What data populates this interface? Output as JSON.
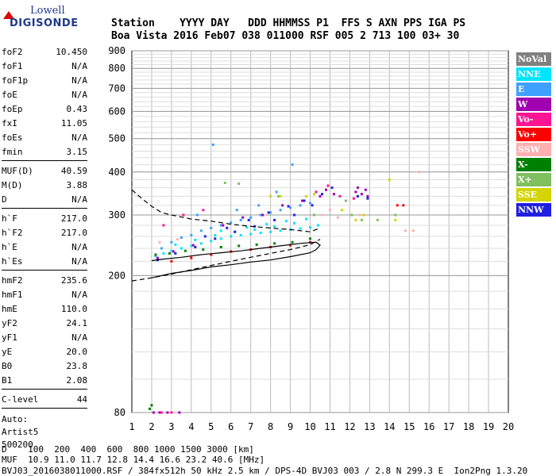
{
  "logo": {
    "top": "Lowell",
    "main": "DIGISONDE"
  },
  "header": {
    "line1": "Station    YYYY DAY   DDD HHMMSS P1  FFS S AXN PPS IGA PS",
    "line2": "Boa Vista 2016 Feb07 038 011000 RSF 005 2 713 100 03+ 30"
  },
  "params": {
    "g1": [
      {
        "label": "foF2",
        "value": "10.450"
      },
      {
        "label": "foF1",
        "value": "N/A"
      },
      {
        "label": "foF1p",
        "value": "N/A"
      },
      {
        "label": "foE",
        "value": "N/A"
      },
      {
        "label": "foEp",
        "value": "0.43"
      },
      {
        "label": "fxI",
        "value": "11.05"
      },
      {
        "label": "foEs",
        "value": "N/A"
      },
      {
        "label": "fmin",
        "value": "3.15"
      }
    ],
    "g2": [
      {
        "label": "MUF(D)",
        "value": "40.59"
      },
      {
        "label": "M(D)",
        "value": "3.88"
      },
      {
        "label": "D",
        "value": "N/A"
      }
    ],
    "g3": [
      {
        "label": "h`F",
        "value": "217.0"
      },
      {
        "label": "h`F2",
        "value": "217.0"
      },
      {
        "label": "h`E",
        "value": "N/A"
      },
      {
        "label": "h`Es",
        "value": "N/A"
      }
    ],
    "g4": [
      {
        "label": "hmF2",
        "value": "235.6"
      },
      {
        "label": "hmF1",
        "value": "N/A"
      },
      {
        "label": "hmE",
        "value": "110.0"
      },
      {
        "label": "yF2",
        "value": "24.1"
      },
      {
        "label": "yF1",
        "value": "N/A"
      },
      {
        "label": "yE",
        "value": "20.0"
      },
      {
        "label": "B0",
        "value": "23.8"
      },
      {
        "label": "B1",
        "value": "2.08"
      }
    ],
    "g5": [
      {
        "label": "C-level",
        "value": "44"
      }
    ],
    "auto": [
      "Auto:",
      "Artist5",
      "500200"
    ]
  },
  "legend": [
    {
      "label": "NoVal",
      "color": "#808080"
    },
    {
      "label": "NNE",
      "color": "#00e5ff"
    },
    {
      "label": "E",
      "color": "#3fa0ff"
    },
    {
      "label": "W",
      "color": "#a000b0"
    },
    {
      "label": "Vo-",
      "color": "#ff1493"
    },
    {
      "label": "Vo+",
      "color": "#ff0000"
    },
    {
      "label": "SSW",
      "color": "#ffb0b0"
    },
    {
      "label": "X-",
      "color": "#008000"
    },
    {
      "label": "X+",
      "color": "#80c060"
    },
    {
      "label": "SSE",
      "color": "#d4d400"
    },
    {
      "label": "NNW",
      "color": "#2020e0"
    }
  ],
  "bottom": {
    "line1": "D    100  200  400  600  800 1000 1500 3000 [km]",
    "line2": "MUF  10.9 11.0 11.7 12.8 14.4 16.6 23.2 40.6 [MHz]",
    "line3": "BVJ03_2016038011000.RSF / 384fx512h 50 kHz 2.5 km / DPS-4D BVJ03 003 / 2.8 N 299.3 E  Ion2Png 1.3.20"
  },
  "chart_data": {
    "type": "scatter",
    "title": "",
    "xlabel": "",
    "ylabel": "",
    "xlim": [
      1,
      20
    ],
    "ylim": [
      80,
      900
    ],
    "y_scale": "log",
    "xticks": [
      1,
      2,
      3,
      4,
      5,
      6,
      7,
      8,
      9,
      10,
      11,
      12,
      13,
      14,
      15,
      16,
      17,
      18,
      19,
      20
    ],
    "yticks": [
      80,
      200,
      300,
      400,
      500,
      600,
      700,
      800,
      900
    ],
    "grid": true,
    "series": [
      {
        "name": "NNE",
        "color": "#00e5ff",
        "points": [
          [
            2.2,
            228
          ],
          [
            2.6,
            232
          ],
          [
            3.0,
            236
          ],
          [
            3.5,
            240
          ],
          [
            4.0,
            244
          ],
          [
            4.5,
            248
          ],
          [
            5.0,
            252
          ],
          [
            5.5,
            256
          ],
          [
            6.0,
            260
          ],
          [
            6.5,
            262
          ],
          [
            7.0,
            264
          ],
          [
            7.5,
            266
          ],
          [
            8.0,
            268
          ],
          [
            8.5,
            270
          ],
          [
            9.0,
            272
          ],
          [
            9.5,
            274
          ],
          [
            10.0,
            276
          ],
          [
            10.4,
            280
          ],
          [
            3.2,
            246
          ],
          [
            4.2,
            254
          ],
          [
            5.2,
            262
          ],
          [
            6.2,
            268
          ],
          [
            7.2,
            272
          ],
          [
            8.2,
            278
          ],
          [
            9.2,
            284
          ],
          [
            5.5,
            270
          ],
          [
            6.8,
            276
          ],
          [
            7.8,
            282
          ],
          [
            8.8,
            288
          ],
          [
            9.8,
            292
          ]
        ]
      },
      {
        "name": "E",
        "color": "#3fa0ff",
        "points": [
          [
            2.5,
            240
          ],
          [
            3.0,
            250
          ],
          [
            3.5,
            258
          ],
          [
            4.0,
            262
          ],
          [
            4.5,
            270
          ],
          [
            5.0,
            275
          ],
          [
            5.5,
            280
          ],
          [
            6.0,
            285
          ],
          [
            6.5,
            290
          ],
          [
            7.0,
            295
          ],
          [
            7.5,
            300
          ],
          [
            8.0,
            305
          ],
          [
            8.5,
            310
          ],
          [
            9.0,
            315
          ],
          [
            9.5,
            320
          ],
          [
            10.0,
            325
          ],
          [
            5.1,
            480
          ],
          [
            8.3,
            350
          ],
          [
            9.1,
            420
          ],
          [
            4.3,
            300
          ],
          [
            6.3,
            310
          ],
          [
            7.4,
            320
          ]
        ]
      },
      {
        "name": "W",
        "color": "#a000b0",
        "points": [
          [
            2.3,
            225
          ],
          [
            3.1,
            235
          ],
          [
            4.1,
            245
          ],
          [
            5.6,
            280
          ],
          [
            6.6,
            295
          ],
          [
            7.6,
            300
          ],
          [
            8.6,
            320
          ],
          [
            9.6,
            330
          ],
          [
            10.5,
            340
          ],
          [
            10.8,
            355
          ],
          [
            11.2,
            345
          ],
          [
            12.3,
            350
          ],
          [
            12.6,
            345
          ],
          [
            12.9,
            340
          ],
          [
            12.4,
            360
          ],
          [
            12.8,
            355
          ],
          [
            2.1,
            80
          ],
          [
            2.4,
            80
          ],
          [
            2.8,
            80
          ],
          [
            3.4,
            80
          ]
        ]
      },
      {
        "name": "Vo-",
        "color": "#ff1493",
        "points": [
          [
            2.6,
            280
          ],
          [
            3.6,
            300
          ],
          [
            4.6,
            310
          ],
          [
            10.3,
            350
          ],
          [
            10.9,
            365
          ],
          [
            11.5,
            340
          ],
          [
            12.2,
            335
          ],
          [
            2.5,
            80
          ],
          [
            3.0,
            80
          ]
        ]
      },
      {
        "name": "Vo+",
        "color": "#ff0000",
        "points": [
          [
            3.0,
            220
          ],
          [
            4.0,
            225
          ],
          [
            5.0,
            230
          ],
          [
            6.0,
            235
          ],
          [
            7.0,
            238
          ],
          [
            8.0,
            242
          ],
          [
            9.0,
            245
          ],
          [
            10.0,
            250
          ],
          [
            14.4,
            320
          ],
          [
            14.7,
            320
          ]
        ]
      },
      {
        "name": "SSW",
        "color": "#ffb0b0",
        "points": [
          [
            2.4,
            250
          ],
          [
            3.3,
            255
          ],
          [
            10.6,
            300
          ],
          [
            11.0,
            310
          ],
          [
            11.4,
            295
          ],
          [
            12.5,
            300
          ],
          [
            14.8,
            270
          ],
          [
            15.2,
            270
          ],
          [
            15.5,
            400
          ]
        ]
      },
      {
        "name": "X-",
        "color": "#008000",
        "points": [
          [
            2.2,
            230
          ],
          [
            2.9,
            232
          ],
          [
            3.7,
            236
          ],
          [
            4.6,
            238
          ],
          [
            5.5,
            242
          ],
          [
            6.4,
            244
          ],
          [
            7.3,
            246
          ],
          [
            8.2,
            248
          ],
          [
            9.1,
            250
          ],
          [
            10.0,
            256
          ],
          [
            1.9,
            82
          ],
          [
            2.0,
            84
          ]
        ]
      },
      {
        "name": "X+",
        "color": "#80c060",
        "points": [
          [
            5.7,
            372
          ],
          [
            6.4,
            370
          ],
          [
            8.4,
            340
          ],
          [
            10.2,
            300
          ],
          [
            11.8,
            330
          ],
          [
            12.1,
            300
          ],
          [
            12.6,
            290
          ],
          [
            13.4,
            290
          ],
          [
            14.3,
            300
          ]
        ]
      },
      {
        "name": "SSE",
        "color": "#d4d400",
        "points": [
          [
            8.0,
            340
          ],
          [
            8.5,
            340
          ],
          [
            9.8,
            340
          ],
          [
            10.2,
            345
          ],
          [
            11.6,
            310
          ],
          [
            12.3,
            290
          ],
          [
            12.7,
            300
          ],
          [
            14.0,
            380
          ],
          [
            14.3,
            290
          ]
        ]
      },
      {
        "name": "NNW",
        "color": "#2020e0",
        "points": [
          [
            2.3,
            222
          ],
          [
            3.2,
            232
          ],
          [
            4.2,
            242
          ],
          [
            5.2,
            256
          ],
          [
            6.2,
            268
          ],
          [
            7.2,
            278
          ],
          [
            8.2,
            290
          ],
          [
            9.2,
            300
          ],
          [
            10.1,
            320
          ],
          [
            10.6,
            345
          ],
          [
            11.1,
            360
          ],
          [
            4.7,
            260
          ],
          [
            5.8,
            275
          ],
          [
            6.9,
            290
          ],
          [
            7.9,
            305
          ],
          [
            8.9,
            318
          ],
          [
            9.7,
            330
          ],
          [
            12.4,
            340
          ],
          [
            12.9,
            335
          ]
        ]
      }
    ],
    "curves": [
      {
        "name": "solid",
        "style": "solid",
        "points": [
          [
            2.0,
            197
          ],
          [
            3.0,
            203
          ],
          [
            4.0,
            207
          ],
          [
            5.0,
            212
          ],
          [
            6.0,
            215
          ],
          [
            7.0,
            219
          ],
          [
            8.0,
            222
          ],
          [
            9.0,
            227
          ],
          [
            10.0,
            233
          ],
          [
            10.3,
            238
          ],
          [
            10.5,
            245
          ],
          [
            10.3,
            250
          ],
          [
            9.5,
            248
          ],
          [
            8.5,
            244
          ],
          [
            7.5,
            240
          ],
          [
            6.5,
            236
          ],
          [
            5.5,
            233
          ],
          [
            4.5,
            230
          ],
          [
            3.5,
            226
          ],
          [
            2.5,
            223
          ],
          [
            2.0,
            221
          ]
        ]
      },
      {
        "name": "dashed-upper",
        "style": "dashed",
        "points": [
          [
            1.0,
            355
          ],
          [
            1.5,
            335
          ],
          [
            2.0,
            318
          ],
          [
            2.5,
            305
          ],
          [
            3.0,
            300
          ],
          [
            4.0,
            292
          ],
          [
            5.0,
            288
          ],
          [
            6.0,
            282
          ],
          [
            7.0,
            278
          ],
          [
            8.0,
            275
          ],
          [
            9.0,
            272
          ],
          [
            10.0,
            268
          ],
          [
            10.5,
            275
          ]
        ]
      },
      {
        "name": "dashed-lower",
        "style": "dashed",
        "points": [
          [
            1.0,
            193
          ],
          [
            2.0,
            197
          ],
          [
            3.0,
            202
          ],
          [
            4.0,
            208
          ],
          [
            5.0,
            214
          ],
          [
            6.0,
            220
          ],
          [
            7.0,
            226
          ],
          [
            8.0,
            232
          ],
          [
            9.0,
            238
          ],
          [
            10.0,
            246
          ],
          [
            10.5,
            255
          ]
        ]
      }
    ]
  }
}
